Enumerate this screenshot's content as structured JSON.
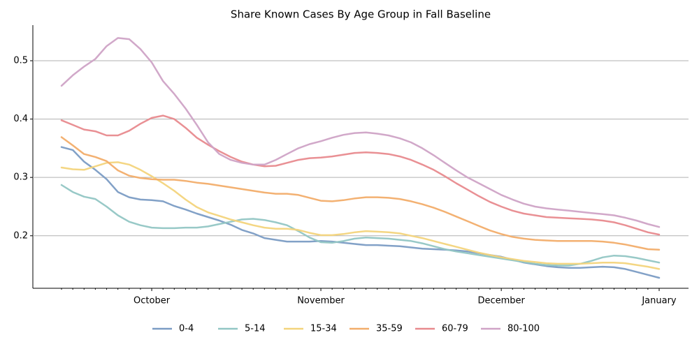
{
  "chart_data": {
    "type": "line",
    "title": "Share Known Cases By Age Group in Fall Baseline",
    "categories": [
      null,
      null,
      null,
      null,
      null,
      null,
      null,
      null,
      "October",
      null,
      null,
      null,
      null,
      null,
      null,
      null,
      null,
      null,
      null,
      null,
      null,
      null,
      null,
      "November",
      null,
      null,
      null,
      null,
      null,
      null,
      null,
      null,
      null,
      null,
      null,
      null,
      null,
      null,
      null,
      "December",
      null,
      null,
      null,
      null,
      null,
      null,
      null,
      null,
      null,
      null,
      null,
      null,
      null,
      "January"
    ],
    "series": [
      {
        "name": "0-4",
        "color": "#7b9cc4",
        "values": [
          0.352,
          0.347,
          0.327,
          0.313,
          0.297,
          0.275,
          0.266,
          0.262,
          0.261,
          0.259,
          0.251,
          0.245,
          0.238,
          0.232,
          0.226,
          0.219,
          0.21,
          0.204,
          0.196,
          0.193,
          0.19,
          0.19,
          0.19,
          0.191,
          0.19,
          0.188,
          0.186,
          0.184,
          0.184,
          0.183,
          0.182,
          0.18,
          0.178,
          0.177,
          0.176,
          0.175,
          0.173,
          0.17,
          0.167,
          0.164,
          0.159,
          0.154,
          0.151,
          0.148,
          0.146,
          0.145,
          0.145,
          0.146,
          0.147,
          0.146,
          0.143,
          0.138,
          0.133,
          0.128
        ]
      },
      {
        "name": "5-14",
        "color": "#92c6c4",
        "values": [
          0.287,
          0.275,
          0.267,
          0.263,
          0.25,
          0.235,
          0.224,
          0.218,
          0.214,
          0.213,
          0.213,
          0.214,
          0.214,
          0.216,
          0.22,
          0.224,
          0.228,
          0.229,
          0.227,
          0.223,
          0.218,
          0.208,
          0.197,
          0.189,
          0.188,
          0.191,
          0.195,
          0.197,
          0.196,
          0.195,
          0.193,
          0.191,
          0.187,
          0.182,
          0.177,
          0.173,
          0.17,
          0.167,
          0.164,
          0.161,
          0.158,
          0.155,
          0.152,
          0.15,
          0.149,
          0.149,
          0.152,
          0.157,
          0.163,
          0.166,
          0.165,
          0.162,
          0.158,
          0.154
        ]
      },
      {
        "name": "15-34",
        "color": "#f3d47c",
        "values": [
          0.317,
          0.314,
          0.313,
          0.319,
          0.325,
          0.326,
          0.322,
          0.313,
          0.302,
          0.29,
          0.277,
          0.262,
          0.249,
          0.24,
          0.234,
          0.228,
          0.223,
          0.218,
          0.214,
          0.212,
          0.212,
          0.21,
          0.205,
          0.201,
          0.201,
          0.203,
          0.206,
          0.208,
          0.207,
          0.206,
          0.204,
          0.2,
          0.196,
          0.191,
          0.186,
          0.181,
          0.176,
          0.171,
          0.167,
          0.163,
          0.16,
          0.157,
          0.155,
          0.153,
          0.152,
          0.152,
          0.152,
          0.153,
          0.154,
          0.154,
          0.153,
          0.15,
          0.147,
          0.143
        ]
      },
      {
        "name": "35-59",
        "color": "#f2ad6a",
        "values": [
          0.369,
          0.355,
          0.34,
          0.335,
          0.328,
          0.312,
          0.303,
          0.299,
          0.297,
          0.296,
          0.296,
          0.294,
          0.291,
          0.289,
          0.286,
          0.283,
          0.28,
          0.277,
          0.274,
          0.272,
          0.272,
          0.27,
          0.265,
          0.26,
          0.259,
          0.261,
          0.264,
          0.266,
          0.266,
          0.265,
          0.263,
          0.259,
          0.254,
          0.248,
          0.241,
          0.233,
          0.225,
          0.217,
          0.209,
          0.203,
          0.198,
          0.195,
          0.193,
          0.192,
          0.191,
          0.191,
          0.191,
          0.191,
          0.19,
          0.188,
          0.185,
          0.181,
          0.177,
          0.176
        ]
      },
      {
        "name": "60-79",
        "color": "#e88a8e",
        "values": [
          0.398,
          0.39,
          0.382,
          0.379,
          0.372,
          0.372,
          0.38,
          0.392,
          0.402,
          0.406,
          0.4,
          0.385,
          0.368,
          0.356,
          0.345,
          0.335,
          0.327,
          0.322,
          0.319,
          0.32,
          0.325,
          0.33,
          0.333,
          0.334,
          0.336,
          0.339,
          0.342,
          0.343,
          0.342,
          0.34,
          0.336,
          0.33,
          0.322,
          0.313,
          0.302,
          0.29,
          0.279,
          0.268,
          0.258,
          0.25,
          0.243,
          0.238,
          0.235,
          0.232,
          0.231,
          0.23,
          0.229,
          0.228,
          0.226,
          0.223,
          0.218,
          0.212,
          0.206,
          0.202
        ]
      },
      {
        "name": "80-100",
        "color": "#cfa3c6",
        "values": [
          0.457,
          0.475,
          0.49,
          0.503,
          0.525,
          0.539,
          0.537,
          0.52,
          0.497,
          0.465,
          0.443,
          0.418,
          0.39,
          0.36,
          0.34,
          0.33,
          0.325,
          0.322,
          0.322,
          0.33,
          0.34,
          0.35,
          0.357,
          0.362,
          0.368,
          0.373,
          0.376,
          0.377,
          0.375,
          0.372,
          0.367,
          0.36,
          0.35,
          0.338,
          0.325,
          0.312,
          0.3,
          0.29,
          0.28,
          0.27,
          0.262,
          0.255,
          0.25,
          0.247,
          0.245,
          0.243,
          0.241,
          0.239,
          0.237,
          0.235,
          0.231,
          0.226,
          0.22,
          0.215
        ]
      }
    ],
    "ylim": [
      0.11,
      0.561
    ],
    "yticks": [
      0.2,
      0.3,
      0.4,
      0.5
    ],
    "grid": true,
    "legend": "bottom"
  }
}
